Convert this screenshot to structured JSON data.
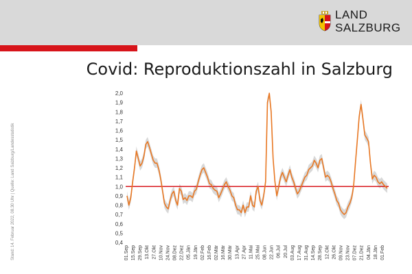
{
  "brand": {
    "line1": "LAND",
    "line2": "SALZBURG"
  },
  "title": "Covid: Reproduktionszahl in Salzburg",
  "side_note": "Stand: 14. Februar 2022, 08.30 Uhr | Quelle: Land Salzburg/Landesstatistik",
  "colors": {
    "header": "#d9d9d9",
    "accent": "#d7141a",
    "series": "#e87722",
    "band": "#c8c8c8",
    "reference": "#d7141a"
  },
  "chart_data": {
    "type": "line",
    "title": "Covid: Reproduktionszahl in Salzburg",
    "xlabel": "",
    "ylabel": "",
    "ylim": [
      0.4,
      2.0
    ],
    "y_ticks": [
      "2,0",
      "1,9",
      "1,8",
      "1,7",
      "1,6",
      "1,5",
      "1,4",
      "1,3",
      "1,2",
      "1,1",
      "1,0",
      "0,9",
      "0,8",
      "0,7",
      "0,6",
      "0,5",
      "0,4"
    ],
    "x_ticks": [
      "01.Sep",
      "15.Sep",
      "29.Sep",
      "13.Okt",
      "27.Okt",
      "10.Nov",
      "24.Nov",
      "08.Dez",
      "22.Dez",
      "05.Jän",
      "19.Jän",
      "02.Feb",
      "16.Feb",
      "02.Mär",
      "16.Mär",
      "30.Mär",
      "13.Apr",
      "27.Apr",
      "11.Mai",
      "25.Mai",
      "08.Jun",
      "22.Jun",
      "06.Jul",
      "20.Jul",
      "03.Aug",
      "17.Aug",
      "31.Aug",
      "14.Sep",
      "28.Sep",
      "12.Okt",
      "26.Okt",
      "09.Nov",
      "23.Nov",
      "07.Dez",
      "21.Dez",
      "04.Jän",
      "18.Jän",
      "01.Feb"
    ],
    "reference_line": 1.0,
    "grid": false,
    "legend": "none",
    "series": [
      {
        "values": [
          0.9,
          0.8,
          0.88,
          1.05,
          1.2,
          1.38,
          1.3,
          1.22,
          1.25,
          1.32,
          1.45,
          1.48,
          1.42,
          1.35,
          1.28,
          1.25,
          1.25,
          1.18,
          1.08,
          0.95,
          0.82,
          0.78,
          0.76,
          0.85,
          0.92,
          0.95,
          0.85,
          0.8,
          0.98,
          0.95,
          0.86,
          0.88,
          0.85,
          0.9,
          0.9,
          0.88,
          0.95,
          0.97,
          1.05,
          1.12,
          1.18,
          1.2,
          1.15,
          1.1,
          1.03,
          1.02,
          0.98,
          0.96,
          0.95,
          0.88,
          0.92,
          0.97,
          1.02,
          1.05,
          1.0,
          0.96,
          0.9,
          0.88,
          0.8,
          0.75,
          0.75,
          0.72,
          0.8,
          0.72,
          0.78,
          0.78,
          0.9,
          0.8,
          0.78,
          0.95,
          1.0,
          0.85,
          0.8,
          0.9,
          1.05,
          1.9,
          2.0,
          1.8,
          1.3,
          1.05,
          0.9,
          1.0,
          1.1,
          1.15,
          1.1,
          1.05,
          1.12,
          1.18,
          1.1,
          1.05,
          0.98,
          0.92,
          0.95,
          1.0,
          1.05,
          1.1,
          1.12,
          1.18,
          1.2,
          1.22,
          1.28,
          1.25,
          1.2,
          1.28,
          1.3,
          1.2,
          1.1,
          1.12,
          1.1,
          1.05,
          0.98,
          0.92,
          0.85,
          0.82,
          0.75,
          0.72,
          0.7,
          0.72,
          0.78,
          0.82,
          0.88,
          1.0,
          1.25,
          1.5,
          1.75,
          1.88,
          1.72,
          1.55,
          1.52,
          1.48,
          1.25,
          1.08,
          1.12,
          1.1,
          1.05,
          1.03,
          1.05,
          1.02,
          1.0,
          0.98
        ]
      }
    ],
    "band_width": 0.05
  }
}
